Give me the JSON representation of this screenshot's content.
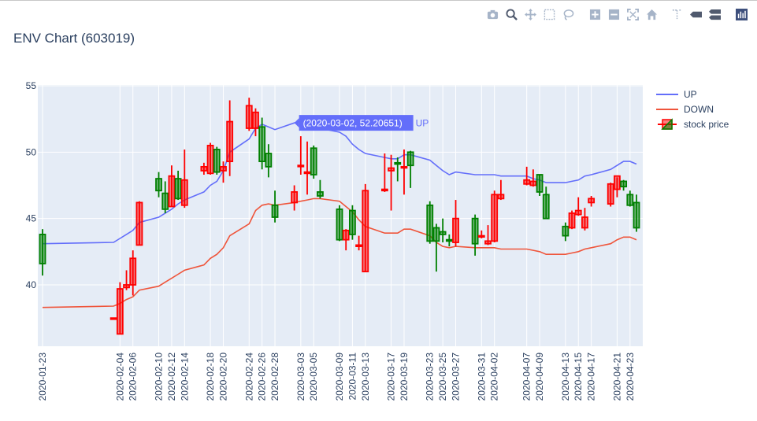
{
  "title": "ENV Chart (603019)",
  "modebar": {
    "icons": [
      "camera-icon",
      "zoom-icon",
      "pan-icon",
      "box-select-icon",
      "lasso-icon",
      "zoom-in-icon",
      "zoom-out-icon",
      "autoscale-icon",
      "home-icon",
      "spike-lines-icon",
      "hover-closest-icon",
      "hover-compare-icon",
      "plotly-logo-icon"
    ]
  },
  "legend": {
    "up": "UP",
    "down": "DOWN",
    "stock": "stock price"
  },
  "hover": {
    "text": "(2020-03-02, 52.20651)",
    "series": "UP"
  },
  "colors": {
    "up_line": "#636efa",
    "down_line": "#ef553b",
    "increasing": "#ff0000",
    "decreasing": "#008000",
    "plot_bg": "#e5ecf6"
  },
  "chart_data": {
    "type": "candlestick",
    "ylim": [
      35,
      55
    ],
    "yticks": [
      40,
      45,
      50,
      55
    ],
    "xtick_labels": [
      "2020-01-23",
      "2020-02-04",
      "2020-02-06",
      "2020-02-10",
      "2020-02-12",
      "2020-02-14",
      "2020-02-18",
      "2020-02-20",
      "2020-02-24",
      "2020-02-26",
      "2020-02-28",
      "2020-03-03",
      "2020-03-05",
      "2020-03-09",
      "2020-03-11",
      "2020-03-13",
      "2020-03-17",
      "2020-03-19",
      "2020-03-23",
      "2020-03-25",
      "2020-03-27",
      "2020-03-31",
      "2020-04-02",
      "2020-04-07",
      "2020-04-09",
      "2020-04-13",
      "2020-04-15",
      "2020-04-17",
      "2020-04-21",
      "2020-04-23"
    ],
    "dates": [
      "2020-01-23",
      "2020-02-03",
      "2020-02-04",
      "2020-02-05",
      "2020-02-06",
      "2020-02-07",
      "2020-02-10",
      "2020-02-11",
      "2020-02-12",
      "2020-02-13",
      "2020-02-14",
      "2020-02-17",
      "2020-02-18",
      "2020-02-19",
      "2020-02-20",
      "2020-02-21",
      "2020-02-24",
      "2020-02-25",
      "2020-02-26",
      "2020-02-27",
      "2020-02-28",
      "2020-03-02",
      "2020-03-03",
      "2020-03-04",
      "2020-03-05",
      "2020-03-06",
      "2020-03-09",
      "2020-03-10",
      "2020-03-11",
      "2020-03-12",
      "2020-03-13",
      "2020-03-16",
      "2020-03-17",
      "2020-03-18",
      "2020-03-19",
      "2020-03-20",
      "2020-03-23",
      "2020-03-24",
      "2020-03-25",
      "2020-03-26",
      "2020-03-27",
      "2020-03-30",
      "2020-03-31",
      "2020-04-01",
      "2020-04-02",
      "2020-04-03",
      "2020-04-07",
      "2020-04-08",
      "2020-04-09",
      "2020-04-10",
      "2020-04-13",
      "2020-04-14",
      "2020-04-15",
      "2020-04-16",
      "2020-04-17",
      "2020-04-20",
      "2020-04-21",
      "2020-04-22",
      "2020-04-23",
      "2020-04-24"
    ],
    "open": [
      43.8,
      37.5,
      36.3,
      39.8,
      40.0,
      43.0,
      48.0,
      46.9,
      45.9,
      48.0,
      46.0,
      48.6,
      48.4,
      50.2,
      48.6,
      49.3,
      51.8,
      51.8,
      51.9,
      49.9,
      46.0,
      46.2,
      49.0,
      48.4,
      50.3,
      47.0,
      45.7,
      43.4,
      45.6,
      42.9,
      41.0,
      47.1,
      48.6,
      49.2,
      48.9,
      50.0,
      46.0,
      44.3,
      44.0,
      43.4,
      43.2,
      45.0,
      43.7,
      43.1,
      43.3,
      46.5,
      47.6,
      47.5,
      48.3,
      46.8,
      44.4,
      44.3,
      45.3,
      44.3,
      46.2,
      46.1,
      47.2,
      47.8,
      46.8,
      46.2
    ],
    "high": [
      44.2,
      37.5,
      40.2,
      41.1,
      42.6,
      46.3,
      48.5,
      47.8,
      49.0,
      48.6,
      50.2,
      49.2,
      50.7,
      50.4,
      49.3,
      53.9,
      54.1,
      53.3,
      52.6,
      50.6,
      47.1,
      47.5,
      51.2,
      50.8,
      50.5,
      47.9,
      46.0,
      44.2,
      46.0,
      43.7,
      47.6,
      49.9,
      49.8,
      49.6,
      50.2,
      50.1,
      46.3,
      44.6,
      45.0,
      43.8,
      46.4,
      45.3,
      44.1,
      44.5,
      47.1,
      47.9,
      48.9,
      48.7,
      48.3,
      47.4,
      44.7,
      45.6,
      46.6,
      45.8,
      46.7,
      47.7,
      48.1,
      47.9,
      47.1,
      46.8
    ],
    "low": [
      40.7,
      37.5,
      36.3,
      39.6,
      39.2,
      43.0,
      46.6,
      45.4,
      45.9,
      46.4,
      45.8,
      48.3,
      48.3,
      48.3,
      47.7,
      48.2,
      51.6,
      51.2,
      48.7,
      48.1,
      44.7,
      45.6,
      48.3,
      46.8,
      48.0,
      46.5,
      43.3,
      42.6,
      43.4,
      42.6,
      41.0,
      47.0,
      45.6,
      47.8,
      46.8,
      47.3,
      43.1,
      41.0,
      43.2,
      42.9,
      42.9,
      42.2,
      43.5,
      43.0,
      43.2,
      46.4,
      47.5,
      47.4,
      46.7,
      45.0,
      43.3,
      44.2,
      45.2,
      44.1,
      45.9,
      45.9,
      46.6,
      47.1,
      45.9,
      44.0
    ],
    "close": [
      41.6,
      37.5,
      39.7,
      40.0,
      42.0,
      46.2,
      47.1,
      45.7,
      48.2,
      46.5,
      47.9,
      48.9,
      50.5,
      48.5,
      48.9,
      52.3,
      53.5,
      53.0,
      49.3,
      48.9,
      45.1,
      47.0,
      49.0,
      48.5,
      48.3,
      46.7,
      43.4,
      44.1,
      43.8,
      43.0,
      47.1,
      47.2,
      48.8,
      49.1,
      48.9,
      49.0,
      43.3,
      43.3,
      43.8,
      43.3,
      45.0,
      43.1,
      43.7,
      43.3,
      46.8,
      46.8,
      47.9,
      47.8,
      47.0,
      45.0,
      43.7,
      45.4,
      45.6,
      45.1,
      46.5,
      47.6,
      48.2,
      47.4,
      46.0,
      44.3
    ],
    "up": [
      43.1,
      43.2,
      43.5,
      43.8,
      44.1,
      44.7,
      45.1,
      45.4,
      45.7,
      46.1,
      46.4,
      47.0,
      47.5,
      47.8,
      48.6,
      50.0,
      51.0,
      51.8,
      52.1,
      51.9,
      51.7,
      52.2,
      52.3,
      52.2,
      52.1,
      51.8,
      51.5,
      51.2,
      50.6,
      50.2,
      49.9,
      49.6,
      49.5,
      49.5,
      49.8,
      49.8,
      49.4,
      49.0,
      48.6,
      48.3,
      48.5,
      48.3,
      48.3,
      48.3,
      48.3,
      48.2,
      48.2,
      48.0,
      47.9,
      47.7,
      47.7,
      47.8,
      47.9,
      48.2,
      48.3,
      48.7,
      49.0,
      49.3,
      49.3,
      49.1
    ],
    "down": [
      38.3,
      38.4,
      38.6,
      38.9,
      39.1,
      39.6,
      39.9,
      40.2,
      40.5,
      40.8,
      41.1,
      41.5,
      42.0,
      42.3,
      42.8,
      43.7,
      44.6,
      45.6,
      46.0,
      46.1,
      46.0,
      46.2,
      46.3,
      46.4,
      46.5,
      46.5,
      46.3,
      45.9,
      45.5,
      44.9,
      44.4,
      43.9,
      43.9,
      43.9,
      44.2,
      44.2,
      43.7,
      43.2,
      42.9,
      42.8,
      42.9,
      42.8,
      42.8,
      42.8,
      42.8,
      42.7,
      42.7,
      42.6,
      42.5,
      42.3,
      42.3,
      42.4,
      42.5,
      42.7,
      42.8,
      43.1,
      43.4,
      43.6,
      43.6,
      43.4
    ]
  }
}
